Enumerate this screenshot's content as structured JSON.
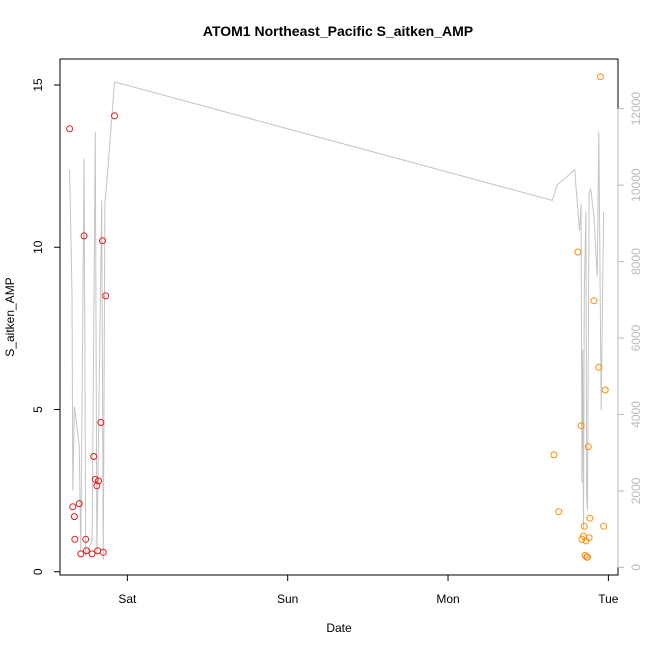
{
  "chart_data": {
    "type": "scatter",
    "title": "ATOM1 Northeast_Pacific S_aitken_AMP",
    "xlabel": "Date",
    "ylabel": "S_aitken_AMP",
    "x_ticks": [
      {
        "label": "Sat",
        "day": 1.0
      },
      {
        "label": "Sun",
        "day": 2.0
      },
      {
        "label": "Mon",
        "day": 3.0
      },
      {
        "label": "Tue",
        "day": 4.0
      }
    ],
    "xlim_days": [
      0.58,
      4.06
    ],
    "ylim": [
      -0.1,
      15.8
    ],
    "yticks": [
      0,
      5,
      10,
      15
    ],
    "ylim_secondary": [
      -200,
      13300
    ],
    "yticks_secondary": [
      0,
      2000,
      4000,
      6000,
      8000,
      10000,
      12000
    ],
    "colors": {
      "series1": "#e41a1c",
      "series2": "#ff8c00",
      "line": "#c4c4c4",
      "secondary_axis": "#bbbbbb"
    },
    "series": [
      {
        "color": "#e41a1c",
        "points": [
          {
            "x": 0.64,
            "y": 13.65
          },
          {
            "x": 0.66,
            "y": 2.0
          },
          {
            "x": 0.67,
            "y": 1.7
          },
          {
            "x": 0.672,
            "y": 1.0
          },
          {
            "x": 0.7,
            "y": 2.1
          },
          {
            "x": 0.71,
            "y": 0.55
          },
          {
            "x": 0.73,
            "y": 10.35
          },
          {
            "x": 0.74,
            "y": 1.0
          },
          {
            "x": 0.745,
            "y": 0.65
          },
          {
            "x": 0.78,
            "y": 0.55
          },
          {
            "x": 0.79,
            "y": 3.55
          },
          {
            "x": 0.8,
            "y": 2.85
          },
          {
            "x": 0.81,
            "y": 2.65
          },
          {
            "x": 0.815,
            "y": 0.65
          },
          {
            "x": 0.82,
            "y": 2.8
          },
          {
            "x": 0.835,
            "y": 4.6
          },
          {
            "x": 0.845,
            "y": 10.2
          },
          {
            "x": 0.85,
            "y": 0.6
          },
          {
            "x": 0.865,
            "y": 8.5
          },
          {
            "x": 0.92,
            "y": 14.05
          }
        ]
      },
      {
        "color": "#ff8c00",
        "points": [
          {
            "x": 3.66,
            "y": 3.6
          },
          {
            "x": 3.69,
            "y": 1.85
          },
          {
            "x": 3.81,
            "y": 9.85
          },
          {
            "x": 3.83,
            "y": 4.5
          },
          {
            "x": 3.835,
            "y": 1.0
          },
          {
            "x": 3.845,
            "y": 1.1
          },
          {
            "x": 3.85,
            "y": 1.4
          },
          {
            "x": 3.855,
            "y": 0.5
          },
          {
            "x": 3.86,
            "y": 0.95
          },
          {
            "x": 3.865,
            "y": 0.45
          },
          {
            "x": 3.87,
            "y": 0.45
          },
          {
            "x": 3.875,
            "y": 3.85
          },
          {
            "x": 3.88,
            "y": 1.05
          },
          {
            "x": 3.885,
            "y": 1.65
          },
          {
            "x": 3.91,
            "y": 8.35
          },
          {
            "x": 3.94,
            "y": 6.3
          },
          {
            "x": 3.95,
            "y": 15.25
          },
          {
            "x": 3.97,
            "y": 1.4
          },
          {
            "x": 3.98,
            "y": 5.6
          }
        ]
      }
    ],
    "secondary_line": {
      "points": [
        [
          0.64,
          10400
        ],
        [
          0.655,
          7200
        ],
        [
          0.66,
          2000
        ],
        [
          0.67,
          4200
        ],
        [
          0.7,
          3200
        ],
        [
          0.71,
          400
        ],
        [
          0.73,
          10700
        ],
        [
          0.74,
          300
        ],
        [
          0.78,
          700
        ],
        [
          0.8,
          11400
        ],
        [
          0.81,
          300
        ],
        [
          0.84,
          9600
        ],
        [
          0.85,
          200
        ],
        [
          0.86,
          9500
        ],
        [
          0.88,
          10500
        ],
        [
          0.92,
          12700
        ],
        [
          3.65,
          9600
        ],
        [
          3.68,
          10000
        ],
        [
          3.79,
          10400
        ],
        [
          3.82,
          8800
        ],
        [
          3.83,
          9500
        ],
        [
          3.835,
          2200
        ],
        [
          3.84,
          5700
        ],
        [
          3.845,
          1000
        ],
        [
          3.85,
          7200
        ],
        [
          3.86,
          9300
        ],
        [
          3.865,
          1800
        ],
        [
          3.87,
          1500
        ],
        [
          3.88,
          9800
        ],
        [
          3.89,
          9900
        ],
        [
          3.91,
          9200
        ],
        [
          3.93,
          7600
        ],
        [
          3.94,
          11400
        ],
        [
          3.955,
          4100
        ],
        [
          3.97,
          9300
        ]
      ]
    }
  }
}
